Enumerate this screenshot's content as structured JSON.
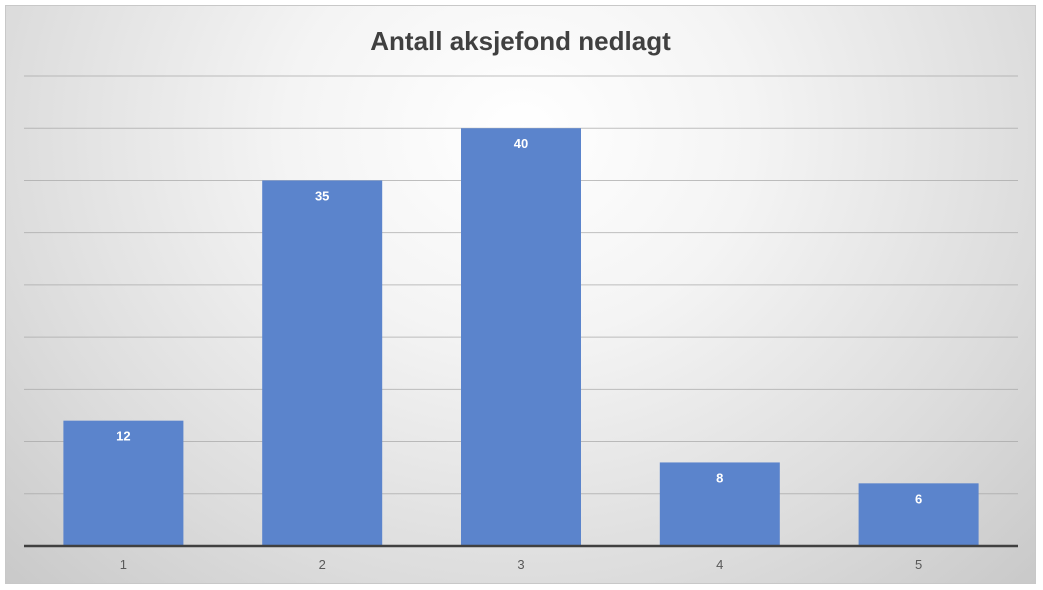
{
  "chart_data": {
    "type": "bar",
    "title": "Antall aksjefond nedlagt",
    "categories": [
      "1",
      "2",
      "3",
      "4",
      "5"
    ],
    "values": [
      12,
      35,
      40,
      8,
      6
    ],
    "ylim": [
      0,
      45
    ],
    "grid": true,
    "data_labels": true,
    "bar_color": "#5b84cc"
  }
}
